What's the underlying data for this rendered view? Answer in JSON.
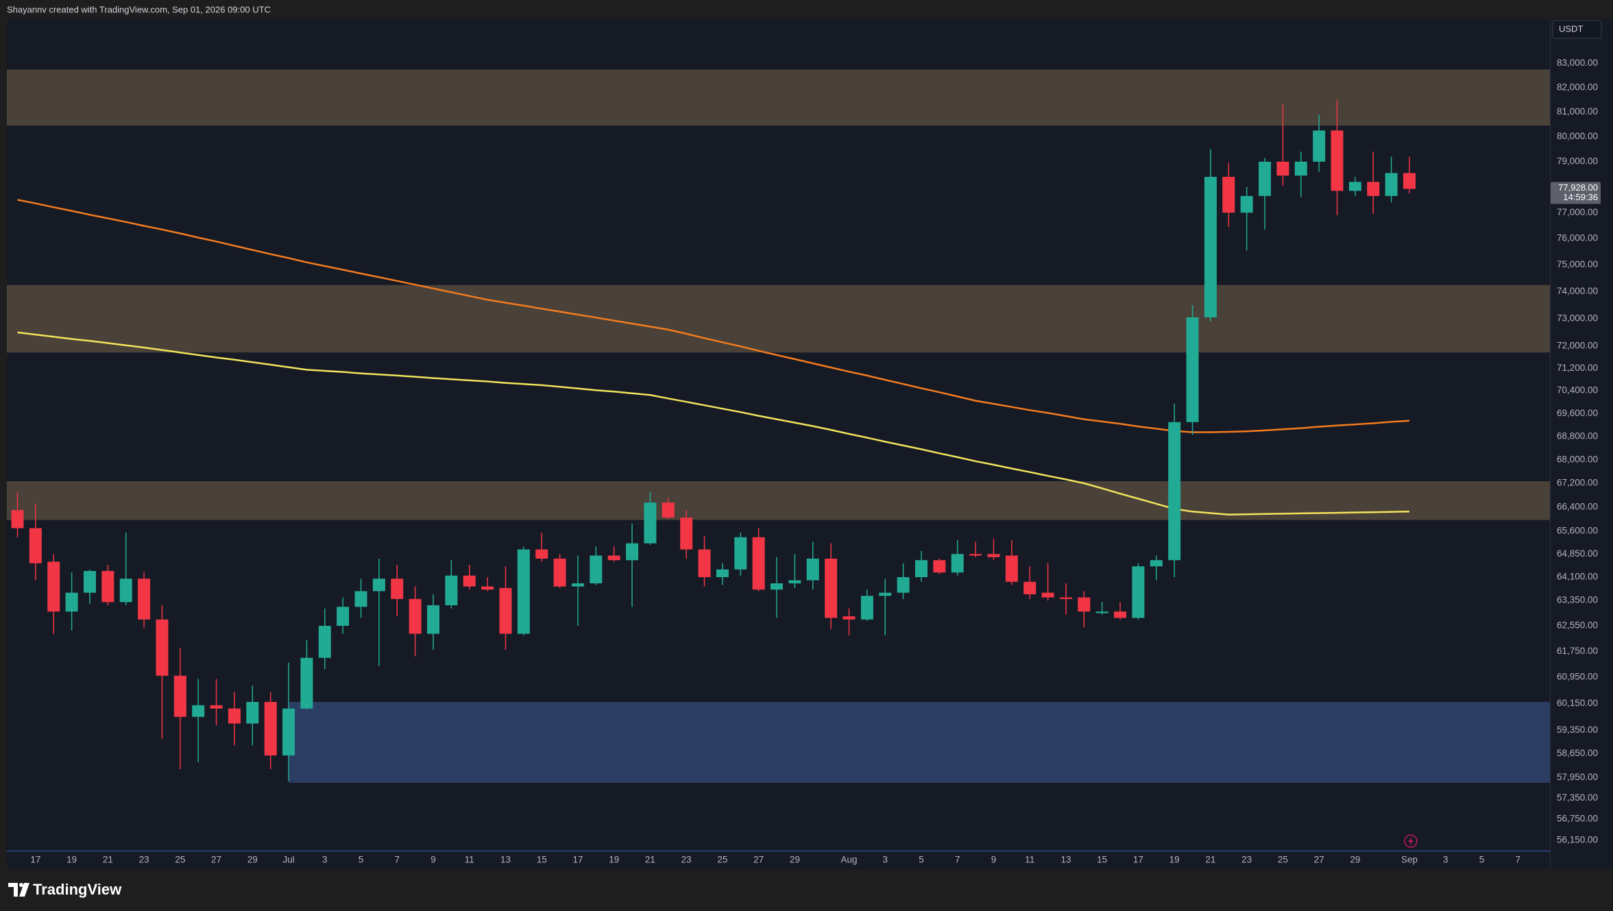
{
  "header": "Shayannv created with TradingView.com, Sep 01, 2026 09:00 UTC",
  "footer": "TradingView",
  "chart_data": {
    "type": "candlestick",
    "log_scale": true,
    "grid": false,
    "currency": "USDT",
    "up_color": "#22ab94",
    "down_color": "#f23645",
    "categories": [
      null,
      "17",
      null,
      "19",
      null,
      "21",
      null,
      "23",
      null,
      "25",
      null,
      "27",
      null,
      "29",
      null,
      "Jul",
      null,
      "3",
      null,
      "5",
      null,
      "7",
      null,
      "9",
      null,
      "11",
      null,
      "13",
      null,
      "15",
      null,
      "17",
      null,
      "19",
      null,
      "21",
      null,
      "23",
      null,
      "25",
      null,
      "27",
      null,
      "29",
      null,
      null,
      "Aug",
      null,
      "3",
      null,
      "5",
      null,
      "7",
      null,
      "9",
      null,
      "11",
      null,
      "13",
      null,
      "15",
      null,
      "17",
      null,
      "19",
      null,
      "21",
      null,
      "23",
      null,
      "25",
      null,
      "27",
      null,
      "29",
      null,
      null,
      "Sep",
      null,
      "3",
      null,
      "5",
      null,
      "7"
    ],
    "open": [
      66300,
      65700,
      64600,
      63000,
      63600,
      64300,
      63300,
      64050,
      62750,
      61000,
      59750,
      60100,
      60000,
      59550,
      60200,
      58600,
      60000,
      61550,
      62550,
      63150,
      63650,
      64050,
      63400,
      62300,
      63200,
      64150,
      63800,
      63750,
      62300,
      65000,
      64700,
      63800,
      63900,
      64800,
      64650,
      65200,
      66550,
      66050,
      65000,
      64100,
      64350,
      65400,
      63700,
      63900,
      64000,
      64700,
      62850,
      62750,
      63500,
      63600,
      64100,
      64650,
      64250,
      64850,
      64850,
      64800,
      63950,
      63600,
      63450,
      63450,
      62950,
      63000,
      62800,
      64450,
      64650,
      69300,
      73050,
      78400,
      77000,
      77650,
      79000,
      78450,
      79000,
      80250,
      77850,
      78200,
      77650,
      78550,
      null,
      null,
      null,
      null,
      null,
      null
    ],
    "high": [
      66900,
      66500,
      64850,
      64250,
      64350,
      64500,
      65550,
      64250,
      63200,
      61850,
      60900,
      60900,
      60500,
      60700,
      60500,
      61400,
      62100,
      63100,
      63450,
      64050,
      64700,
      64500,
      63800,
      63550,
      64650,
      64500,
      64100,
      64450,
      65100,
      65550,
      64850,
      64800,
      65100,
      65100,
      65850,
      66900,
      66700,
      66300,
      65450,
      64550,
      65550,
      65700,
      64750,
      64850,
      65250,
      65200,
      63100,
      63700,
      64050,
      64550,
      64950,
      64700,
      65300,
      65250,
      65350,
      65300,
      64450,
      64550,
      63900,
      63650,
      63300,
      63300,
      64550,
      64800,
      69950,
      73500,
      79500,
      78950,
      78000,
      79150,
      81300,
      79400,
      80900,
      81500,
      78400,
      79400,
      79200,
      79200,
      null,
      null,
      null,
      null,
      null,
      null
    ],
    "low": [
      65400,
      64000,
      62300,
      62400,
      63250,
      63200,
      63200,
      62500,
      59100,
      58200,
      58400,
      59500,
      58900,
      58900,
      58200,
      57850,
      59970,
      61200,
      62300,
      62800,
      61300,
      62850,
      61600,
      61800,
      63100,
      63700,
      63650,
      61800,
      62250,
      64600,
      63750,
      62550,
      63850,
      64600,
      63150,
      65150,
      66000,
      64700,
      63800,
      63850,
      64150,
      63650,
      62800,
      63750,
      63700,
      62450,
      62250,
      62700,
      62250,
      63400,
      63950,
      64200,
      64150,
      64750,
      64650,
      63850,
      63400,
      63350,
      62900,
      62500,
      62900,
      62750,
      62750,
      64000,
      64100,
      68850,
      72900,
      76450,
      75550,
      76350,
      78050,
      77600,
      78600,
      76900,
      77650,
      76950,
      77400,
      77750,
      null,
      null,
      null,
      null,
      null,
      null
    ],
    "close": [
      65700,
      64550,
      63000,
      63600,
      64300,
      63300,
      64050,
      62750,
      61000,
      59750,
      60100,
      60000,
      59550,
      60200,
      58600,
      60000,
      61550,
      62550,
      63150,
      63650,
      64050,
      63400,
      62300,
      63200,
      64150,
      63800,
      63700,
      62300,
      65000,
      64700,
      63800,
      63900,
      64800,
      64650,
      65200,
      66550,
      66050,
      65000,
      64100,
      64350,
      65400,
      63700,
      63900,
      64000,
      64700,
      62800,
      62750,
      63500,
      63600,
      64100,
      64650,
      64250,
      64850,
      64800,
      64750,
      63950,
      63550,
      63450,
      63400,
      63000,
      63000,
      62800,
      64450,
      64650,
      69300,
      73050,
      78400,
      77000,
      77650,
      79000,
      78450,
      79000,
      80250,
      77850,
      78200,
      77650,
      78550,
      77928,
      null,
      null,
      null,
      null,
      null,
      null
    ],
    "lines": [
      {
        "color": "#f57c1f",
        "values": [
          77500,
          77360,
          77210,
          77070,
          76920,
          76780,
          76640,
          76490,
          76350,
          76200,
          76040,
          75890,
          75730,
          75570,
          75410,
          75260,
          75100,
          74960,
          74820,
          74680,
          74540,
          74400,
          74260,
          74120,
          73980,
          73840,
          73700,
          73590,
          73480,
          73370,
          73260,
          73150,
          73040,
          72930,
          72820,
          72710,
          72600,
          72450,
          72290,
          72140,
          71990,
          71830,
          71680,
          71530,
          71380,
          71230,
          71080,
          70940,
          70790,
          70640,
          70490,
          70350,
          70200,
          70050,
          69940,
          69830,
          69720,
          69620,
          69510,
          69400,
          69320,
          69240,
          69150,
          69070,
          68990,
          68950,
          68950,
          68960,
          68980,
          69010,
          69050,
          69090,
          69140,
          69180,
          69220,
          69260,
          69310,
          69350,
          null,
          null,
          null,
          null,
          null,
          null
        ]
      },
      {
        "color": "#f2e45c",
        "values": [
          72500,
          72420,
          72340,
          72260,
          72190,
          72110,
          72030,
          71950,
          71860,
          71770,
          71680,
          71590,
          71510,
          71420,
          71330,
          71240,
          71150,
          71110,
          71070,
          71020,
          70980,
          70940,
          70900,
          70850,
          70810,
          70770,
          70730,
          70680,
          70640,
          70600,
          70540,
          70480,
          70420,
          70370,
          70310,
          70250,
          70130,
          70010,
          69890,
          69770,
          69650,
          69520,
          69400,
          69280,
          69160,
          69030,
          68890,
          68760,
          68620,
          68490,
          68360,
          68220,
          68090,
          67950,
          67830,
          67700,
          67580,
          67450,
          67330,
          67200,
          67030,
          66850,
          66680,
          66510,
          66340,
          66250,
          66200,
          66150,
          66160,
          66170,
          66180,
          66190,
          66200,
          66210,
          66220,
          66230,
          66240,
          66250,
          null,
          null,
          null,
          null,
          null,
          null
        ]
      }
    ],
    "zones": [
      {
        "low": 80450,
        "high": 82750,
        "color": "#4a4139"
      },
      {
        "low": 71770,
        "high": 74250,
        "color": "#4a4139"
      },
      {
        "low": 65970,
        "high": 67270,
        "color": "#4a4139"
      },
      {
        "low": 57800,
        "high": 60200,
        "color": "#2b3d63",
        "from": "Jul"
      }
    ],
    "ylim": [
      55860,
      84900
    ],
    "yticks": [
      {
        "value": 83000,
        "label": "83,000.00"
      },
      {
        "value": 82000,
        "label": "82,000.00"
      },
      {
        "value": 81000,
        "label": "81,000.00"
      },
      {
        "value": 80000,
        "label": "80,000.00"
      },
      {
        "value": 79000,
        "label": "79,000.00"
      },
      {
        "value": 77000,
        "label": "77,000.00"
      },
      {
        "value": 76000,
        "label": "76,000.00"
      },
      {
        "value": 75000,
        "label": "75,000.00"
      },
      {
        "value": 74000,
        "label": "74,000.00"
      },
      {
        "value": 73000,
        "label": "73,000.00"
      },
      {
        "value": 72000,
        "label": "72,000.00"
      },
      {
        "value": 71200,
        "label": "71,200.00"
      },
      {
        "value": 70400,
        "label": "70,400.00"
      },
      {
        "value": 69600,
        "label": "69,600.00"
      },
      {
        "value": 68800,
        "label": "68,800.00"
      },
      {
        "value": 68000,
        "label": "68,000.00"
      },
      {
        "value": 67200,
        "label": "67,200.00"
      },
      {
        "value": 66400,
        "label": "66,400.00"
      },
      {
        "value": 65600,
        "label": "65,600.00"
      },
      {
        "value": 64850,
        "label": "64,850.00"
      },
      {
        "value": 64100,
        "label": "64,100.00"
      },
      {
        "value": 63350,
        "label": "63,350.00"
      },
      {
        "value": 62550,
        "label": "62,550.00"
      },
      {
        "value": 61750,
        "label": "61,750.00"
      },
      {
        "value": 60950,
        "label": "60,950.00"
      },
      {
        "value": 60150,
        "label": "60,150.00"
      },
      {
        "value": 59350,
        "label": "59,350.00"
      },
      {
        "value": 58650,
        "label": "58,650.00"
      },
      {
        "value": 57950,
        "label": "57,950.00"
      },
      {
        "value": 57350,
        "label": "57,350.00"
      },
      {
        "value": 56750,
        "label": "56,750.00"
      },
      {
        "value": 56150,
        "label": "56,150.00"
      }
    ],
    "last_price": {
      "value": 77928,
      "label": "77,928.00"
    },
    "countdown": "14:59:36"
  }
}
